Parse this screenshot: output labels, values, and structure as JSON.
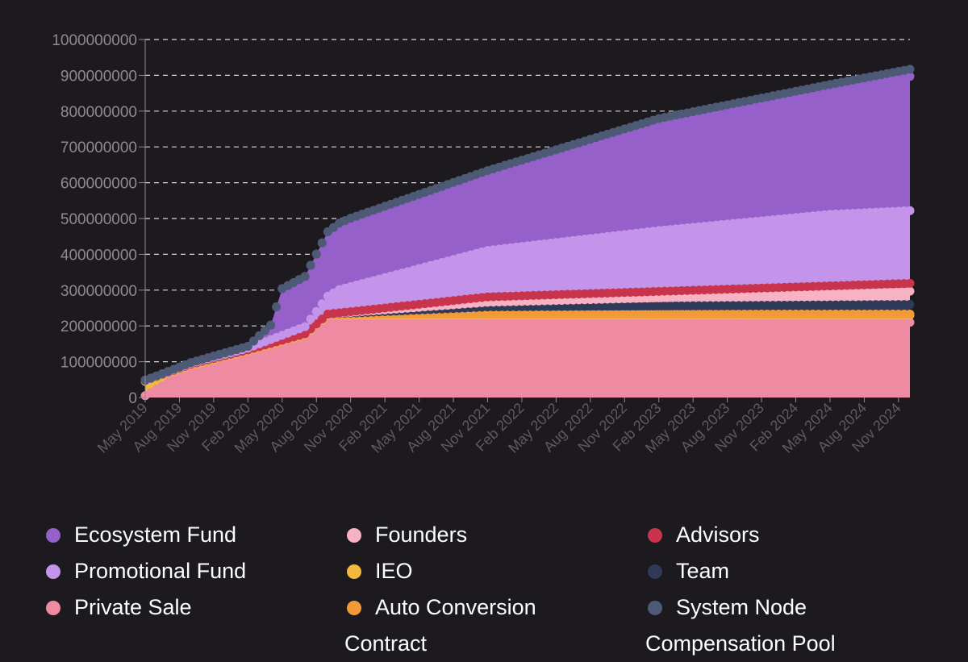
{
  "chart_data": {
    "type": "area",
    "stacked": true,
    "title": "",
    "xlabel": "",
    "ylabel": "",
    "ylim": [
      0,
      1000000000
    ],
    "yticks": [
      "0",
      "100000000",
      "200000000",
      "300000000",
      "400000000",
      "500000000",
      "600000000",
      "700000000",
      "800000000",
      "900000000",
      "1000000000"
    ],
    "grid": true,
    "legend_position": "bottom",
    "x_tick_labels": [
      "May 2019",
      "Aug 2019",
      "Nov 2019",
      "Feb 2020",
      "May 2020",
      "Aug 2020",
      "Nov 2020",
      "Feb 2021",
      "May 2021",
      "Aug 2021",
      "Nov 2021",
      "Feb 2022",
      "May 2022",
      "Aug 2022",
      "Nov 2022",
      "Feb 2023",
      "May 2023",
      "Aug 2023",
      "Nov 2023",
      "Feb 2024",
      "May 2024",
      "Aug 2024",
      "Nov 2024"
    ],
    "x_start": "May 2019",
    "x_end": "Dec 2024",
    "points_per_month": 2,
    "series": [
      {
        "name": "Private Sale",
        "color": "#ee8aa2",
        "keypoints": [
          [
            0,
            5000000
          ],
          [
            4,
            80000000
          ],
          [
            9,
            120000000
          ],
          [
            14,
            165000000
          ],
          [
            16,
            210000000
          ],
          [
            67,
            210000000
          ]
        ]
      },
      {
        "name": "IEO",
        "color": "#f2b93b",
        "keypoints": [
          [
            0,
            40000000
          ],
          [
            4,
            10000000
          ],
          [
            14,
            10000000
          ],
          [
            16,
            20000000
          ],
          [
            67,
            20000000
          ]
        ]
      },
      {
        "name": "Auto Conversion Contract",
        "color": "#f29a38",
        "keypoints": [
          [
            0,
            3000000
          ],
          [
            67,
            3000000
          ]
        ]
      },
      {
        "name": "Team",
        "color": "#2e3a58",
        "keypoints": [
          [
            0,
            0
          ],
          [
            16,
            0
          ],
          [
            30,
            20000000
          ],
          [
            67,
            27000000
          ]
        ]
      },
      {
        "name": "Founders",
        "color": "#f7b2c4",
        "keypoints": [
          [
            0,
            0
          ],
          [
            16,
            0
          ],
          [
            30,
            13000000
          ],
          [
            67,
            37000000
          ]
        ]
      },
      {
        "name": "Advisors",
        "color": "#c8344c",
        "keypoints": [
          [
            0,
            0
          ],
          [
            16,
            0
          ],
          [
            30,
            15000000
          ],
          [
            67,
            22000000
          ]
        ]
      },
      {
        "name": "Promotional Fund",
        "color": "#c394ea",
        "keypoints": [
          [
            0,
            0
          ],
          [
            9,
            5000000
          ],
          [
            14,
            20000000
          ],
          [
            17,
            65000000
          ],
          [
            30,
            130000000
          ],
          [
            45,
            170000000
          ],
          [
            60,
            200000000
          ],
          [
            67,
            203000000
          ]
        ]
      },
      {
        "name": "Ecosystem Fund",
        "color": "#9560c9",
        "keypoints": [
          [
            0,
            0
          ],
          [
            9,
            5000000
          ],
          [
            11,
            40000000
          ],
          [
            12,
            130000000
          ],
          [
            14,
            140000000
          ],
          [
            16,
            180000000
          ],
          [
            18,
            190000000
          ],
          [
            30,
            215000000
          ],
          [
            45,
            300000000
          ],
          [
            60,
            345000000
          ],
          [
            67,
            375000000
          ]
        ]
      },
      {
        "name": "System Node Compensation Pool",
        "color": "#4d5a75",
        "keypoints": [
          [
            0,
            0
          ],
          [
            16,
            0
          ],
          [
            30,
            8000000
          ],
          [
            67,
            20000000
          ]
        ]
      }
    ]
  },
  "legend": {
    "items": [
      {
        "key": "ecosystem",
        "label": "Ecosystem Fund",
        "color": "#9560c9"
      },
      {
        "key": "promotional",
        "label": "Promotional Fund",
        "color": "#c394ea"
      },
      {
        "key": "private",
        "label": "Private Sale",
        "color": "#ee8aa2"
      },
      {
        "key": "founders",
        "label": "Founders",
        "color": "#f7b2c4"
      },
      {
        "key": "ieo",
        "label": "IEO",
        "color": "#f2b93b"
      },
      {
        "key": "auto",
        "label": "Auto Conversion",
        "label2": "Contract",
        "color": "#f29a38"
      },
      {
        "key": "advisors",
        "label": "Advisors",
        "color": "#c8344c"
      },
      {
        "key": "team",
        "label": "Team",
        "color": "#2e3a58"
      },
      {
        "key": "node",
        "label": "System Node",
        "label2": "Compensation Pool",
        "color": "#4d5a75"
      }
    ]
  }
}
